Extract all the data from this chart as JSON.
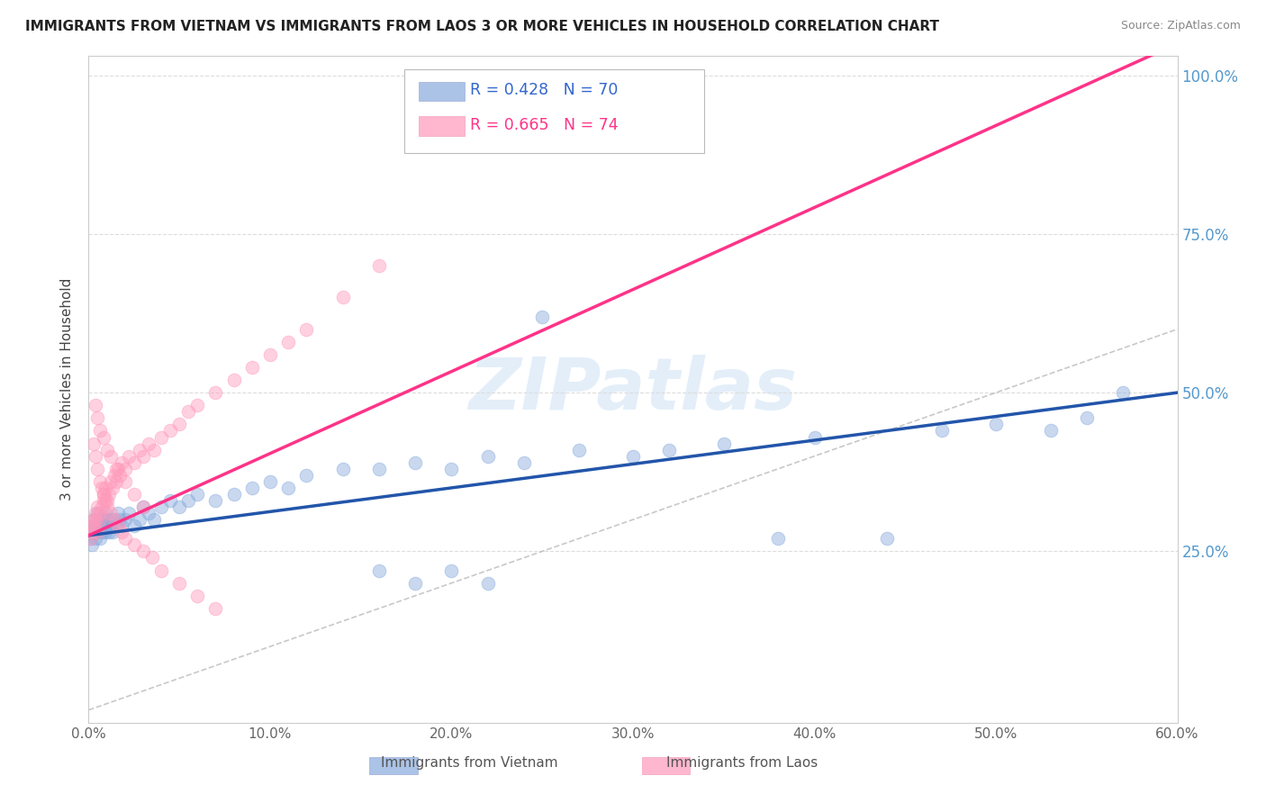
{
  "title": "IMMIGRANTS FROM VIETNAM VS IMMIGRANTS FROM LAOS 3 OR MORE VEHICLES IN HOUSEHOLD CORRELATION CHART",
  "source": "Source: ZipAtlas.com",
  "ylabel": "3 or more Vehicles in Household",
  "R_vietnam": 0.428,
  "N_vietnam": 70,
  "R_laos": 0.665,
  "N_laos": 74,
  "color_vietnam": "#88AADD",
  "color_laos": "#FF99BB",
  "color_trend_vietnam": "#2255AA",
  "color_trend_laos": "#FF3388",
  "color_diagonal": "#BBBBBB",
  "watermark_text": "ZIPatlas",
  "x_min": 0.0,
  "x_max": 0.6,
  "y_min": -0.02,
  "y_max": 1.03,
  "legend_vietnam": "Immigrants from Vietnam",
  "legend_laos": "Immigrants from Laos",
  "vietnam_x": [
    0.001,
    0.002,
    0.002,
    0.003,
    0.003,
    0.004,
    0.004,
    0.005,
    0.005,
    0.005,
    0.006,
    0.006,
    0.007,
    0.007,
    0.008,
    0.008,
    0.009,
    0.009,
    0.01,
    0.01,
    0.011,
    0.012,
    0.012,
    0.013,
    0.014,
    0.015,
    0.016,
    0.017,
    0.018,
    0.02,
    0.022,
    0.025,
    0.028,
    0.03,
    0.033,
    0.036,
    0.04,
    0.045,
    0.05,
    0.055,
    0.06,
    0.07,
    0.08,
    0.09,
    0.1,
    0.11,
    0.12,
    0.14,
    0.16,
    0.18,
    0.2,
    0.22,
    0.24,
    0.25,
    0.27,
    0.3,
    0.32,
    0.35,
    0.38,
    0.4,
    0.44,
    0.47,
    0.5,
    0.53,
    0.55,
    0.57,
    0.16,
    0.18,
    0.2,
    0.22
  ],
  "vietnam_y": [
    0.27,
    0.28,
    0.26,
    0.29,
    0.3,
    0.28,
    0.27,
    0.29,
    0.28,
    0.31,
    0.3,
    0.27,
    0.29,
    0.28,
    0.3,
    0.29,
    0.28,
    0.31,
    0.3,
    0.29,
    0.28,
    0.3,
    0.29,
    0.28,
    0.3,
    0.29,
    0.31,
    0.3,
    0.29,
    0.3,
    0.31,
    0.29,
    0.3,
    0.32,
    0.31,
    0.3,
    0.32,
    0.33,
    0.32,
    0.33,
    0.34,
    0.33,
    0.34,
    0.35,
    0.36,
    0.35,
    0.37,
    0.38,
    0.38,
    0.39,
    0.38,
    0.4,
    0.39,
    0.62,
    0.41,
    0.4,
    0.41,
    0.42,
    0.27,
    0.43,
    0.27,
    0.44,
    0.45,
    0.44,
    0.46,
    0.5,
    0.22,
    0.2,
    0.22,
    0.2
  ],
  "laos_x": [
    0.001,
    0.002,
    0.002,
    0.003,
    0.003,
    0.004,
    0.004,
    0.005,
    0.005,
    0.006,
    0.006,
    0.007,
    0.008,
    0.008,
    0.009,
    0.01,
    0.011,
    0.012,
    0.013,
    0.014,
    0.015,
    0.016,
    0.017,
    0.018,
    0.02,
    0.022,
    0.025,
    0.028,
    0.03,
    0.033,
    0.036,
    0.04,
    0.045,
    0.05,
    0.055,
    0.06,
    0.07,
    0.08,
    0.09,
    0.1,
    0.11,
    0.12,
    0.14,
    0.16,
    0.003,
    0.004,
    0.005,
    0.006,
    0.007,
    0.008,
    0.009,
    0.01,
    0.012,
    0.014,
    0.016,
    0.018,
    0.02,
    0.025,
    0.03,
    0.035,
    0.04,
    0.05,
    0.06,
    0.07,
    0.004,
    0.005,
    0.006,
    0.008,
    0.01,
    0.012,
    0.015,
    0.02,
    0.025,
    0.03
  ],
  "laos_y": [
    0.27,
    0.29,
    0.28,
    0.3,
    0.29,
    0.31,
    0.3,
    0.28,
    0.32,
    0.31,
    0.3,
    0.32,
    0.33,
    0.34,
    0.35,
    0.33,
    0.34,
    0.36,
    0.35,
    0.37,
    0.36,
    0.38,
    0.37,
    0.39,
    0.38,
    0.4,
    0.39,
    0.41,
    0.4,
    0.42,
    0.41,
    0.43,
    0.44,
    0.45,
    0.47,
    0.48,
    0.5,
    0.52,
    0.54,
    0.56,
    0.58,
    0.6,
    0.65,
    0.7,
    0.42,
    0.4,
    0.38,
    0.36,
    0.35,
    0.34,
    0.33,
    0.32,
    0.31,
    0.3,
    0.29,
    0.28,
    0.27,
    0.26,
    0.25,
    0.24,
    0.22,
    0.2,
    0.18,
    0.16,
    0.48,
    0.46,
    0.44,
    0.43,
    0.41,
    0.4,
    0.38,
    0.36,
    0.34,
    0.32
  ]
}
